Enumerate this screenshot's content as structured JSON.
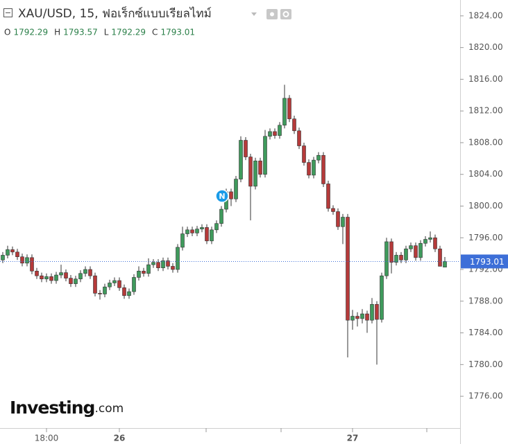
{
  "chart_data": {
    "type": "candlestick",
    "title": "XAU/USD, 15, ฟอเร็กซ์แบบเรียลไทม์",
    "legend_letters": [
      "O",
      "H",
      "L",
      "C"
    ],
    "logo": {
      "brand": "Investing",
      "suffix": ".com"
    },
    "badge": "N",
    "up_color": "#3f9a5c",
    "down_color": "#b53a3a",
    "price_box_color": "#3d6fd8",
    "categories": [
      null,
      null,
      null,
      null,
      null,
      null,
      null,
      null,
      null,
      "18:00",
      null,
      null,
      null,
      null,
      null,
      null,
      null,
      null,
      null,
      null,
      null,
      null,
      null,
      null,
      "26",
      null,
      null,
      null,
      null,
      null,
      null,
      null,
      null,
      null,
      null,
      null,
      null,
      null,
      null,
      null,
      null,
      null,
      null,
      null,
      null,
      null,
      null,
      null,
      null,
      null,
      null,
      null,
      null,
      null,
      null,
      null,
      null,
      null,
      null,
      null,
      null,
      null,
      null,
      null,
      null,
      null,
      null,
      null,
      null,
      null,
      null,
      null,
      "27",
      null,
      null,
      null,
      null,
      null,
      null,
      null,
      null,
      null,
      null,
      null,
      null,
      null,
      null,
      null,
      null,
      null,
      null,
      null
    ],
    "series": {
      "open": [
        1793.2,
        1793.8,
        1794.5,
        1794.2,
        1793.6,
        1792.8,
        1793.5,
        1791.8,
        1791.2,
        1790.8,
        1791.1,
        1790.6,
        1791.3,
        1791.6,
        1790.9,
        1790.2,
        1790.8,
        1791.5,
        1792.0,
        1791.2,
        1789.0,
        1788.9,
        1789.8,
        1790.3,
        1790.6,
        1789.7,
        1788.7,
        1789.2,
        1791.0,
        1791.8,
        1791.5,
        1792.6,
        1792.9,
        1792.2,
        1793.1,
        1792.4,
        1792.0,
        1794.8,
        1796.5,
        1797.0,
        1796.6,
        1797.1,
        1797.3,
        1795.6,
        1797.0,
        1797.8,
        1799.6,
        1801.8,
        1800.9,
        1803.4,
        1808.3,
        1806.2,
        1802.5,
        1805.7,
        1804.0,
        1808.8,
        1809.4,
        1808.9,
        1810.2,
        1813.6,
        1811.0,
        1809.5,
        1807.6,
        1805.5,
        1803.9,
        1805.8,
        1806.4,
        1802.8,
        1799.7,
        1799.3,
        1797.4,
        1798.6,
        1785.6,
        1786.1,
        1785.8,
        1786.4,
        1785.6,
        1787.6,
        1785.7,
        1791.2,
        1795.5,
        1792.9,
        1793.8,
        1793.2,
        1794.6,
        1795.0,
        1793.5,
        1795.3,
        1795.8,
        1796.0,
        1794.6,
        1792.29
      ],
      "high": [
        1794.2,
        1795.0,
        1794.9,
        1794.6,
        1794.0,
        1793.9,
        1793.9,
        1792.2,
        1791.6,
        1791.5,
        1791.5,
        1791.7,
        1792.6,
        1792.0,
        1791.3,
        1791.2,
        1791.9,
        1792.4,
        1792.4,
        1791.6,
        1789.4,
        1790.2,
        1790.7,
        1791.0,
        1791.0,
        1790.1,
        1789.6,
        1791.4,
        1792.4,
        1792.2,
        1793.4,
        1793.3,
        1793.3,
        1793.5,
        1793.5,
        1792.8,
        1795.2,
        1797.4,
        1797.4,
        1797.4,
        1797.5,
        1797.7,
        1797.7,
        1797.4,
        1798.2,
        1800.0,
        1802.2,
        1802.2,
        1803.8,
        1808.8,
        1808.7,
        1806.6,
        1806.1,
        1806.1,
        1809.6,
        1809.8,
        1809.8,
        1810.6,
        1815.3,
        1814.0,
        1811.4,
        1809.9,
        1808.0,
        1805.9,
        1806.2,
        1806.8,
        1806.8,
        1803.2,
        1800.1,
        1799.7,
        1799.0,
        1799.0,
        1786.9,
        1786.6,
        1787.0,
        1786.8,
        1788.4,
        1788.0,
        1791.6,
        1796.0,
        1795.9,
        1794.2,
        1794.2,
        1795.0,
        1795.4,
        1795.4,
        1795.7,
        1796.2,
        1796.8,
        1796.4,
        1795.0,
        1793.57
      ],
      "low": [
        1792.8,
        1793.4,
        1793.8,
        1793.2,
        1792.4,
        1792.4,
        1791.4,
        1790.8,
        1790.4,
        1790.4,
        1790.2,
        1790.2,
        1790.9,
        1790.5,
        1789.8,
        1789.8,
        1790.4,
        1791.1,
        1790.8,
        1788.6,
        1788.2,
        1788.5,
        1789.4,
        1789.9,
        1789.3,
        1788.3,
        1788.3,
        1788.8,
        1790.6,
        1791.1,
        1791.1,
        1792.2,
        1791.8,
        1791.8,
        1792.0,
        1791.6,
        1791.6,
        1794.4,
        1796.1,
        1796.2,
        1796.2,
        1796.7,
        1795.2,
        1795.2,
        1796.6,
        1797.4,
        1799.2,
        1800.0,
        1800.5,
        1803.0,
        1805.8,
        1798.2,
        1802.1,
        1803.6,
        1803.6,
        1808.4,
        1808.5,
        1808.5,
        1809.8,
        1810.6,
        1809.1,
        1807.2,
        1805.1,
        1803.5,
        1803.5,
        1805.4,
        1802.4,
        1799.3,
        1798.9,
        1797.0,
        1795.2,
        1780.9,
        1784.4,
        1784.8,
        1785.2,
        1784.0,
        1785.2,
        1780.0,
        1785.3,
        1790.8,
        1791.5,
        1792.5,
        1792.8,
        1792.8,
        1794.2,
        1793.1,
        1793.1,
        1794.9,
        1795.4,
        1794.2,
        1792.8,
        1792.29
      ],
      "close": [
        1793.8,
        1794.5,
        1794.2,
        1793.6,
        1792.8,
        1793.5,
        1791.8,
        1791.2,
        1790.8,
        1791.1,
        1790.6,
        1791.3,
        1791.6,
        1790.9,
        1790.2,
        1790.8,
        1791.5,
        1792.0,
        1791.2,
        1789.0,
        1788.9,
        1789.8,
        1790.3,
        1790.6,
        1789.7,
        1788.7,
        1789.2,
        1791.0,
        1791.8,
        1791.5,
        1792.6,
        1792.9,
        1792.2,
        1793.1,
        1792.4,
        1792.0,
        1794.8,
        1796.5,
        1797.0,
        1796.6,
        1797.1,
        1797.3,
        1795.6,
        1797.0,
        1797.8,
        1799.6,
        1801.8,
        1800.9,
        1803.4,
        1808.3,
        1806.2,
        1802.5,
        1805.7,
        1804.0,
        1808.8,
        1809.4,
        1808.9,
        1810.2,
        1813.6,
        1811.0,
        1809.5,
        1807.6,
        1805.5,
        1803.9,
        1805.8,
        1806.4,
        1802.8,
        1799.7,
        1799.3,
        1797.4,
        1798.6,
        1785.6,
        1786.1,
        1785.8,
        1786.4,
        1785.6,
        1787.6,
        1785.7,
        1791.2,
        1795.5,
        1792.9,
        1793.8,
        1793.2,
        1794.6,
        1795.0,
        1793.5,
        1795.3,
        1795.8,
        1796.0,
        1794.6,
        1792.4,
        1793.01
      ]
    },
    "ylim": [
      1772.25,
      1826.0
    ],
    "yticks": [
      {
        "value": 1776,
        "label": "1776.00"
      },
      {
        "value": 1780,
        "label": "1780.00"
      },
      {
        "value": 1784,
        "label": "1784.00"
      },
      {
        "value": 1788,
        "label": "1788.00"
      },
      {
        "value": 1792,
        "label": "1792.00"
      },
      {
        "value": 1796,
        "label": "1796.00"
      },
      {
        "value": 1800,
        "label": "1800.00"
      },
      {
        "value": 1804,
        "label": "1804.00"
      },
      {
        "value": 1808,
        "label": "1808.00"
      },
      {
        "value": 1812,
        "label": "1812.00"
      },
      {
        "value": 1816,
        "label": "1816.00"
      },
      {
        "value": 1820,
        "label": "1820.00"
      },
      {
        "value": 1824,
        "label": "1824.00"
      }
    ]
  }
}
